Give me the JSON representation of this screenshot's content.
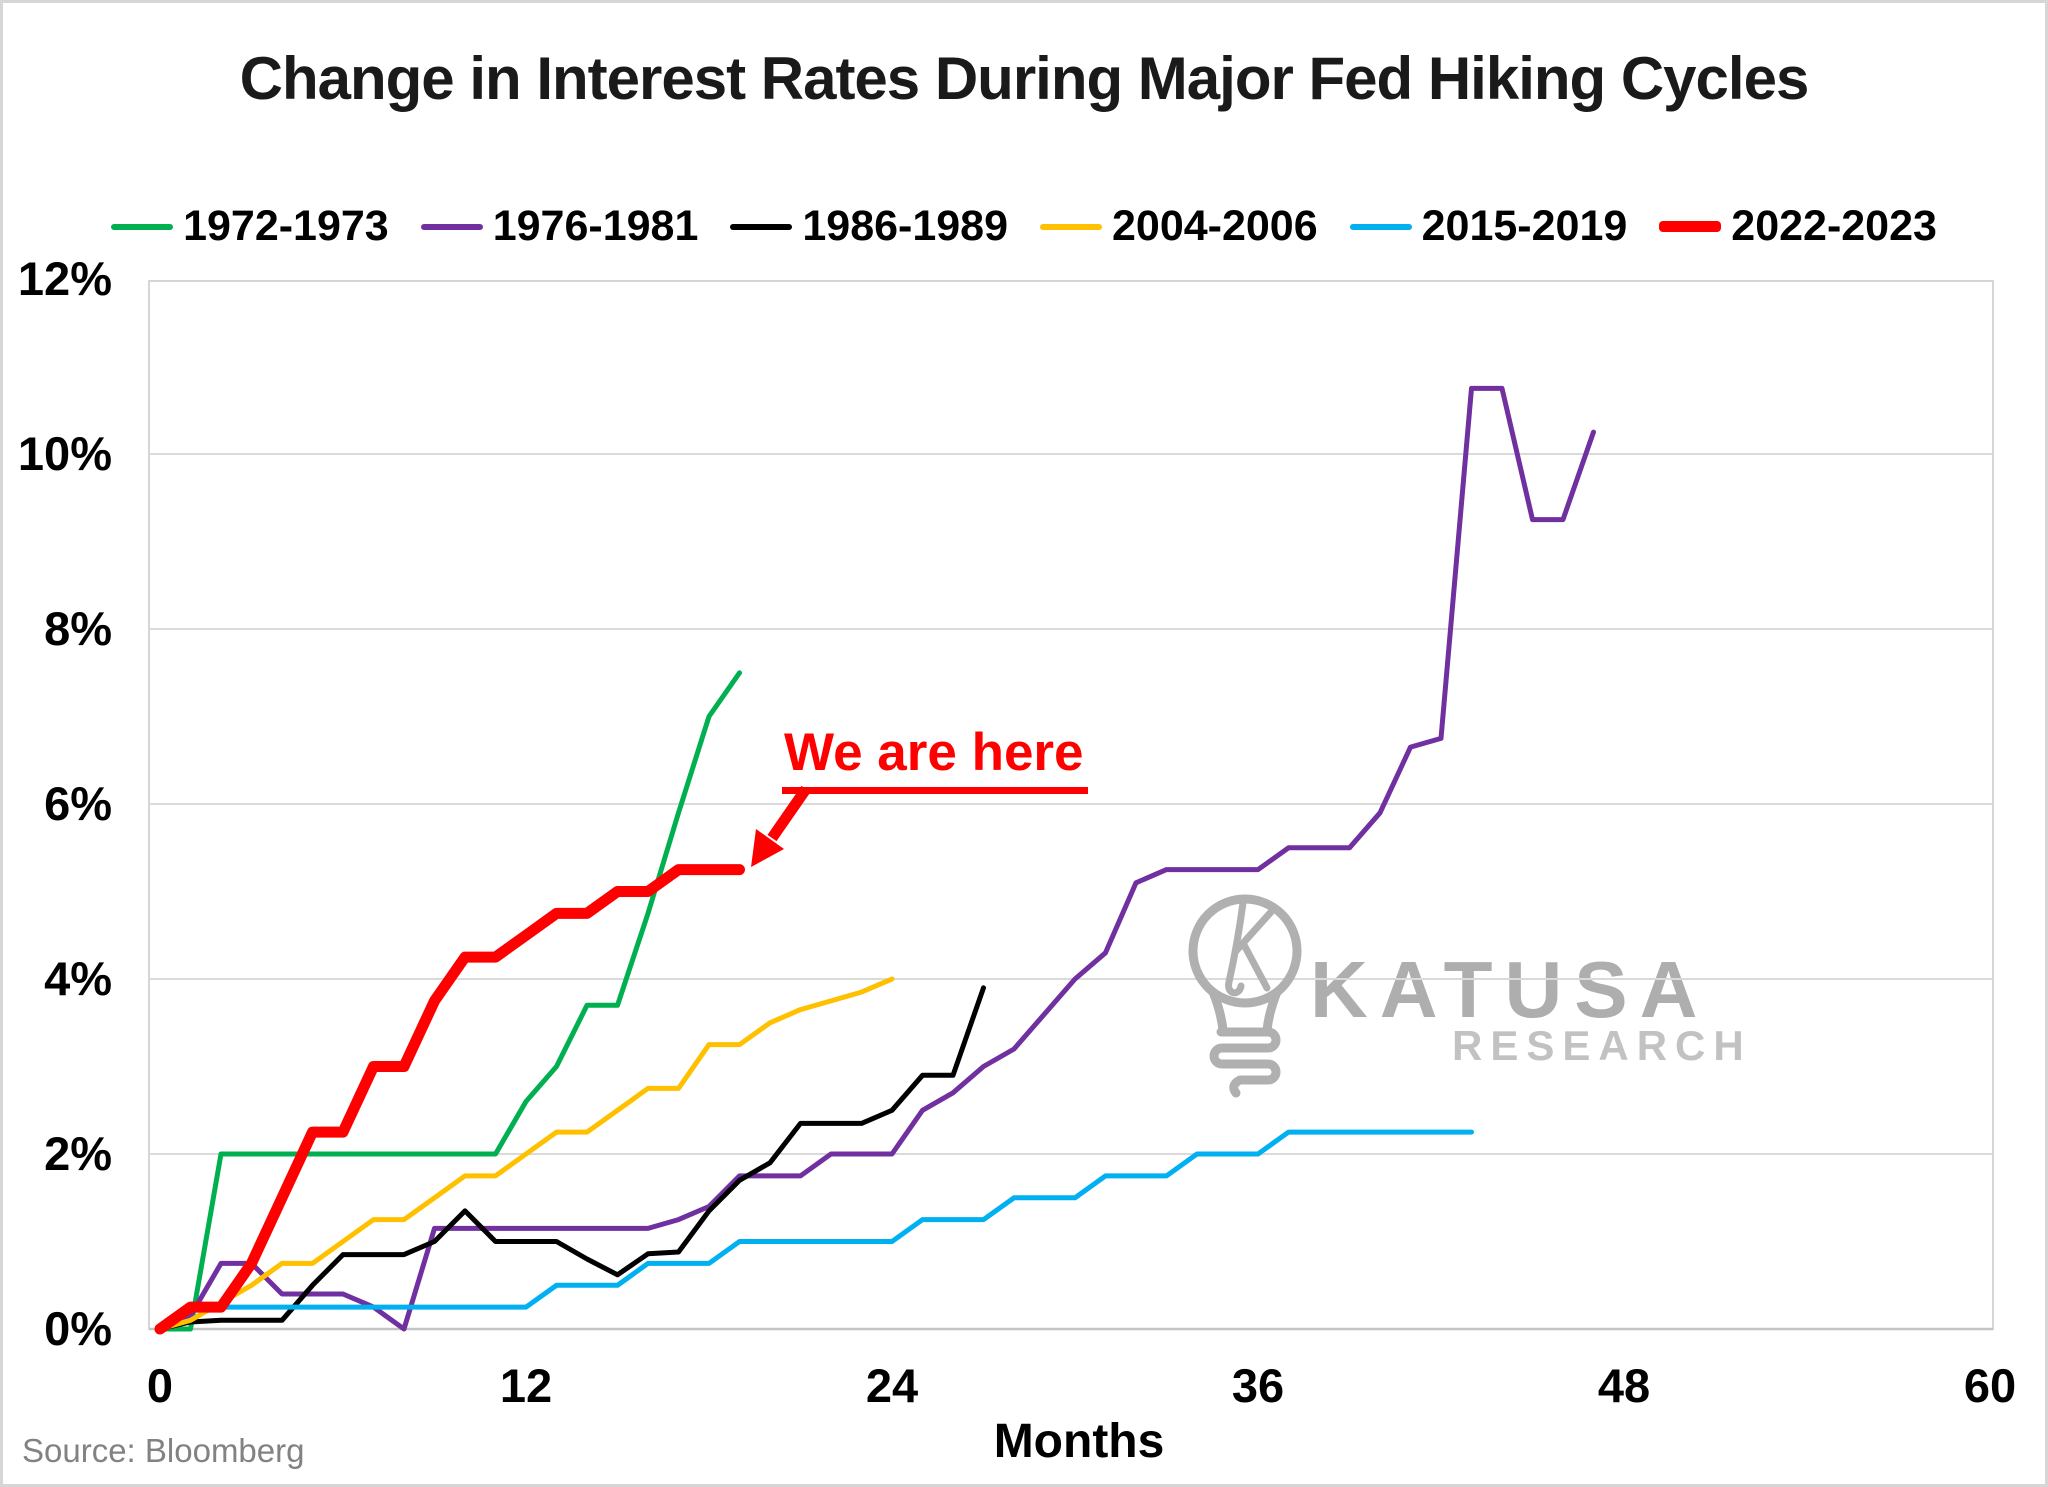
{
  "title": "Change in Interest Rates During Major Fed Hiking Cycles",
  "source_note": "Source: Bloomberg",
  "annotation": {
    "text": "We are here",
    "points_to": {
      "month": 19,
      "value": 5.25
    }
  },
  "watermark": {
    "icon": "lightbulb-k-logo",
    "brand_top": "KATUSA",
    "brand_bottom": "RESEARCH",
    "icon_color": "#b0b0b0"
  },
  "chart_data": {
    "type": "line",
    "title": "Change in Interest Rates During Major Fed Hiking Cycles",
    "xlabel": "Months",
    "ylabel": "",
    "xlim": [
      0,
      60
    ],
    "ylim": [
      0,
      12
    ],
    "x_ticks": [
      0,
      12,
      24,
      36,
      48,
      60
    ],
    "y_ticks": [
      0,
      2,
      4,
      6,
      8,
      10,
      12
    ],
    "y_tick_labels": [
      "0%",
      "2%",
      "4%",
      "6%",
      "8%",
      "10%",
      "12%"
    ],
    "grid": "horizontal",
    "legend_position": "top",
    "x_unit": "months since first hike",
    "y_unit": "percentage point change",
    "series": [
      {
        "name": "1972-1973",
        "color": "#00B050",
        "stroke_width": 5,
        "start_month": 0,
        "values": [
          0,
          0,
          2,
          2,
          2,
          2,
          2,
          2,
          2,
          2,
          2,
          2,
          2.6,
          3,
          3.7,
          3.7,
          4.75,
          5.9,
          7,
          7.5
        ]
      },
      {
        "name": "1976-1981",
        "color": "#7030A0",
        "stroke_width": 5,
        "start_month": 0,
        "values": [
          0,
          0.15,
          0.75,
          0.75,
          0.4,
          0.4,
          0.4,
          0.25,
          0,
          1.15,
          1.15,
          1.15,
          1.15,
          1.15,
          1.15,
          1.15,
          1.15,
          1.25,
          1.4,
          1.75,
          1.75,
          1.75,
          2,
          2,
          2,
          2.5,
          2.7,
          3,
          3.2,
          3.6,
          4,
          4.3,
          5.1,
          5.25,
          5.25,
          5.25,
          5.25,
          5.5,
          5.5,
          5.5,
          5.9,
          6.65,
          6.75,
          10.75,
          10.75,
          9.25,
          9.25,
          10.25
        ]
      },
      {
        "name": "1986-1989",
        "color": "#000000",
        "stroke_width": 5,
        "start_month": 0,
        "values": [
          0,
          0.08,
          0.1,
          0.1,
          0.1,
          0.5,
          0.85,
          0.85,
          0.85,
          1,
          1.35,
          1,
          1,
          1,
          0.8,
          0.62,
          0.86,
          0.88,
          1.35,
          1.7,
          1.9,
          2.35,
          2.35,
          2.35,
          2.5,
          2.9,
          2.9,
          3.9
        ]
      },
      {
        "name": "2004-2006",
        "color": "#FFC000",
        "stroke_width": 5,
        "start_month": 0,
        "values": [
          0,
          0.1,
          0.3,
          0.5,
          0.75,
          0.75,
          1,
          1.25,
          1.25,
          1.5,
          1.75,
          1.75,
          2,
          2.25,
          2.25,
          2.5,
          2.75,
          2.75,
          3.25,
          3.25,
          3.5,
          3.65,
          3.75,
          3.85,
          4
        ]
      },
      {
        "name": "2015-2019",
        "color": "#00B0F0",
        "stroke_width": 5,
        "start_month": 0,
        "values": [
          0,
          0.25,
          0.25,
          0.25,
          0.25,
          0.25,
          0.25,
          0.25,
          0.25,
          0.25,
          0.25,
          0.25,
          0.25,
          0.5,
          0.5,
          0.5,
          0.75,
          0.75,
          0.75,
          1,
          1,
          1,
          1,
          1,
          1,
          1.25,
          1.25,
          1.25,
          1.5,
          1.5,
          1.5,
          1.75,
          1.75,
          1.75,
          2,
          2,
          2,
          2.25,
          2.25,
          2.25,
          2.25,
          2.25,
          2.25,
          2.25
        ]
      },
      {
        "name": "2022-2023",
        "color": "#FF0000",
        "stroke_width": 11,
        "start_month": 0,
        "values": [
          0,
          0.25,
          0.25,
          0.75,
          1.5,
          2.25,
          2.25,
          3,
          3,
          3.75,
          4.25,
          4.25,
          4.5,
          4.75,
          4.75,
          5,
          5,
          5.25,
          5.25,
          5.25
        ]
      }
    ]
  }
}
